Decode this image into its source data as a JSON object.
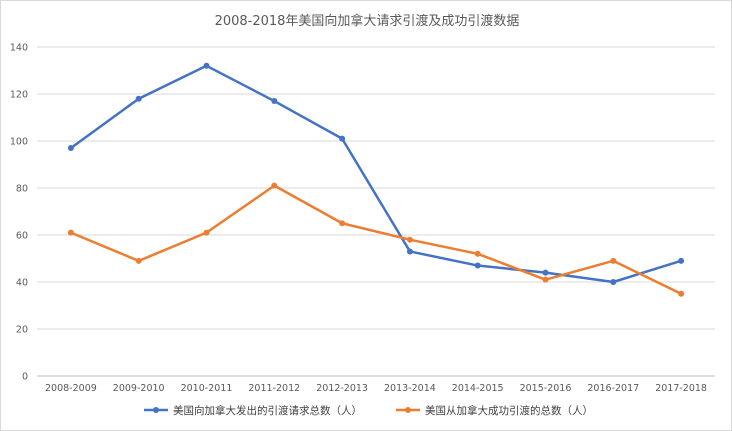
{
  "chart_data": {
    "type": "line",
    "title": "2008-2018年美国向加拿大请求引渡及成功引渡数据",
    "categories": [
      "2008-2009",
      "2009-2010",
      "2010-2011",
      "2011-2012",
      "2012-2013",
      "2013-2014",
      "2014-2015",
      "2015-2016",
      "2016-2017",
      "2017-2018"
    ],
    "ylim": [
      0,
      140
    ],
    "yticks": [
      0,
      20,
      40,
      60,
      80,
      100,
      120,
      140
    ],
    "grid": true,
    "legend_position": "bottom",
    "series": [
      {
        "name": "美国向加拿大发出的引渡请求总数（人）",
        "color": "#4472c4",
        "values": [
          97,
          118,
          132,
          117,
          101,
          53,
          47,
          44,
          40,
          49
        ]
      },
      {
        "name": "美国从加拿大成功引渡的总数（人）",
        "color": "#ed7d31",
        "values": [
          61,
          49,
          61,
          81,
          65,
          58,
          52,
          41,
          49,
          35
        ]
      }
    ]
  }
}
